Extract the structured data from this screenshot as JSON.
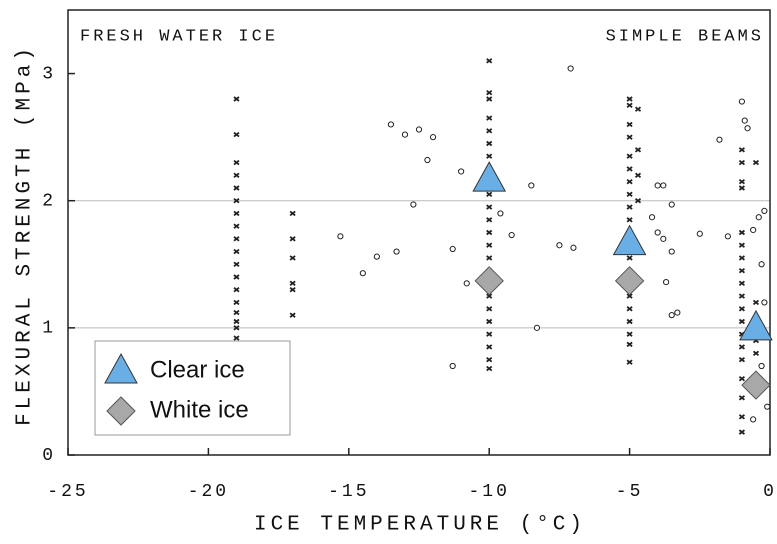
{
  "chart_data": {
    "type": "scatter",
    "annotations": [
      "FRESH WATER ICE",
      "SIMPLE BEAMS"
    ],
    "xlabel": "ICE TEMPERATURE (°C)",
    "ylabel": "FLEXURAL STRENGTH (MPa)",
    "xlim": [
      -25,
      0
    ],
    "ylim": [
      0,
      3.5
    ],
    "xticks": [
      -25,
      -20,
      -15,
      -10,
      -5,
      0
    ],
    "yticks": [
      0,
      1,
      2,
      3
    ],
    "hlines": [
      1,
      2
    ],
    "series": [
      {
        "marker": "x",
        "color": "#222",
        "x": [
          -19,
          -19,
          -19,
          -19,
          -19,
          -19,
          -19,
          -19,
          -19,
          -19,
          -19,
          -19,
          -19,
          -19,
          -19,
          -19,
          -19,
          -19,
          -17,
          -17,
          -17,
          -17,
          -17,
          -17,
          -10,
          -10,
          -10,
          -10,
          -10,
          -10,
          -10,
          -10,
          -10,
          -10,
          -10,
          -10,
          -10,
          -10,
          -10,
          -10,
          -10,
          -10,
          -10,
          -10,
          -10,
          -10,
          -10,
          -10,
          -5,
          -5,
          -5,
          -5,
          -5,
          -5,
          -5,
          -5,
          -5,
          -5,
          -5,
          -5,
          -5,
          -5,
          -5,
          -5,
          -5,
          -5,
          -5,
          -5,
          -5,
          -4.7,
          -4.7,
          -4.7,
          -4.7,
          -1,
          -1,
          -1,
          -1,
          -1,
          -1,
          -1,
          -1,
          -1,
          -1,
          -1,
          -1,
          -1,
          -1,
          -1,
          -1,
          -1,
          -1,
          -1,
          -0.5,
          -0.5,
          -0.5,
          -0.5
        ],
        "values": [
          0.92,
          1.0,
          1.05,
          1.12,
          1.2,
          1.3,
          1.4,
          1.5,
          1.6,
          1.7,
          1.8,
          1.9,
          2.0,
          2.1,
          2.2,
          2.3,
          2.52,
          2.8,
          1.1,
          1.3,
          1.35,
          1.55,
          1.7,
          1.9,
          0.68,
          0.75,
          0.85,
          0.95,
          1.05,
          1.15,
          1.25,
          1.35,
          1.45,
          1.55,
          1.65,
          1.75,
          1.85,
          1.95,
          2.05,
          2.15,
          2.25,
          2.35,
          2.45,
          2.55,
          2.65,
          2.8,
          2.85,
          3.1,
          0.73,
          0.87,
          0.95,
          1.05,
          1.15,
          1.25,
          1.35,
          1.45,
          1.55,
          1.65,
          1.75,
          1.85,
          1.95,
          2.05,
          2.15,
          2.25,
          2.35,
          2.5,
          2.6,
          2.75,
          2.8,
          2.0,
          2.2,
          2.4,
          2.72,
          0.18,
          0.3,
          0.45,
          0.6,
          0.75,
          0.85,
          0.95,
          1.05,
          1.15,
          1.25,
          1.35,
          1.45,
          1.55,
          1.65,
          1.75,
          2.1,
          2.15,
          2.3,
          2.4,
          0.8,
          0.9,
          1.2,
          2.3
        ]
      },
      {
        "marker": "circle",
        "color": "#222",
        "x": [
          -13.5,
          -13,
          -12.5,
          -12.2,
          -12,
          -12.7,
          -11,
          -15.3,
          -14.5,
          -14,
          -13.3,
          -11.3,
          -10.8,
          -11.3,
          -9.6,
          -9.2,
          -8.5,
          -8.3,
          -7.5,
          -7,
          -7.1,
          -4,
          -3.8,
          -3.5,
          -4,
          -3.8,
          -3.5,
          -3.7,
          -3.5,
          -3.3,
          -4.2,
          -2.5,
          -1.8,
          -1.5,
          -1,
          -0.9,
          -0.8,
          -0.6,
          -0.4,
          -0.2,
          -0.3,
          -0.1,
          -0.3,
          -0.2,
          -0.6
        ],
        "values": [
          2.6,
          2.52,
          2.56,
          2.32,
          2.5,
          1.97,
          2.23,
          1.72,
          1.43,
          1.56,
          1.6,
          1.62,
          1.35,
          0.7,
          1.9,
          1.73,
          2.12,
          1.0,
          1.65,
          1.63,
          3.04,
          2.12,
          2.12,
          1.97,
          1.75,
          1.7,
          1.6,
          1.36,
          1.1,
          1.12,
          1.87,
          1.74,
          2.48,
          1.72,
          2.78,
          2.63,
          2.57,
          1.77,
          1.87,
          1.92,
          1.5,
          0.38,
          0.7,
          1.2,
          0.28
        ]
      },
      {
        "name": "Clear ice",
        "marker": "triangle",
        "color": "#6aaee6",
        "x": [
          -10,
          -5,
          -0.5
        ],
        "values": [
          2.17,
          1.67,
          1.0
        ]
      },
      {
        "name": "White ice",
        "marker": "diamond",
        "color": "#a8a8a8",
        "x": [
          -10,
          -5,
          -0.5
        ],
        "values": [
          1.37,
          1.37,
          0.55
        ]
      }
    ]
  }
}
